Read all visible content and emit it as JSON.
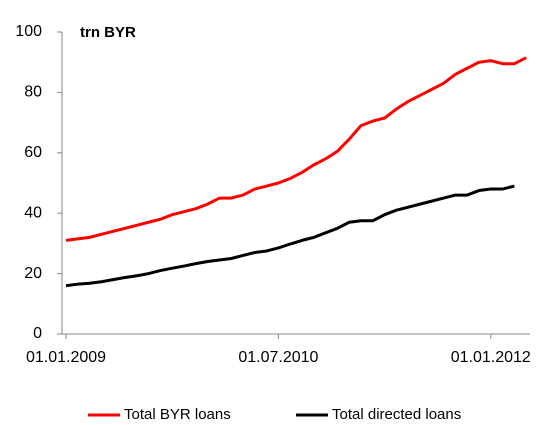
{
  "chart_data": {
    "type": "line",
    "title": "trn BYR",
    "categories": [
      "01.01.2009",
      null,
      null,
      null,
      null,
      null,
      null,
      null,
      null,
      null,
      null,
      null,
      null,
      null,
      null,
      null,
      null,
      null,
      "01.07.2010",
      null,
      null,
      null,
      null,
      null,
      null,
      null,
      null,
      null,
      null,
      null,
      null,
      null,
      null,
      null,
      null,
      null,
      "01.01.2012",
      null,
      null,
      null
    ],
    "series": [
      {
        "name": "Total BYR loans",
        "color": "#ff0000",
        "values": [
          31,
          31.5,
          32,
          33,
          34,
          35,
          36,
          37,
          38,
          39.5,
          40.5,
          41.5,
          43,
          45,
          45,
          46,
          48,
          49,
          50,
          51.5,
          53.5,
          56,
          58,
          60.5,
          64.5,
          69,
          70.5,
          71.5,
          74.5,
          77,
          79,
          81,
          83,
          86,
          88,
          90,
          90.5,
          89.5,
          89.5,
          91.5
        ]
      },
      {
        "name": "Total directed loans",
        "color": "#000000",
        "values": [
          16,
          16.5,
          16.8,
          17.3,
          18,
          18.7,
          19.3,
          20,
          21,
          21.8,
          22.5,
          23.3,
          24,
          24.5,
          25,
          26,
          27,
          27.5,
          28.5,
          29.8,
          31,
          32,
          33.5,
          35,
          37,
          37.5,
          37.5,
          39.5,
          41,
          42,
          43,
          44,
          45,
          46,
          46,
          47.5,
          48,
          48,
          49,
          null
        ]
      }
    ],
    "ylim": [
      0,
      100
    ],
    "yticks": [
      0,
      20,
      40,
      60,
      80,
      100
    ],
    "grid": false,
    "legend": "bottom"
  }
}
